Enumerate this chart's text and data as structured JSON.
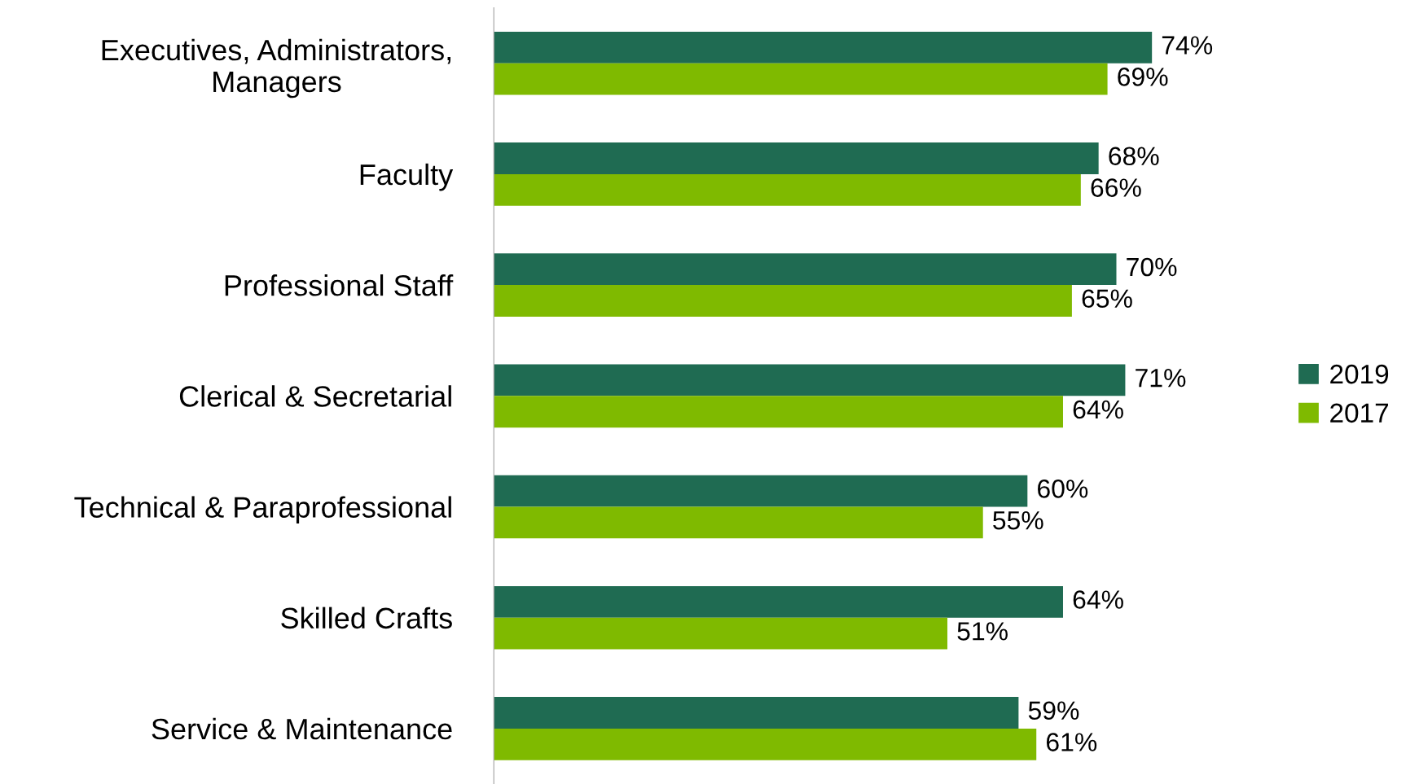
{
  "chart_data": {
    "type": "bar",
    "orientation": "horizontal",
    "categories": [
      "Executives, Administrators,\nManagers",
      "Faculty",
      "Professional Staff",
      "Clerical & Secretarial",
      "Technical & Paraprofessional",
      "Skilled Crafts",
      "Service & Maintenance"
    ],
    "series": [
      {
        "name": "2019",
        "color": "#1f6b52",
        "values": [
          74,
          68,
          70,
          71,
          60,
          64,
          59
        ],
        "value_labels": [
          "74%",
          "68%",
          "70%",
          "71%",
          "60%",
          "64%",
          "59%"
        ]
      },
      {
        "name": "2017",
        "color": "#7fba00",
        "values": [
          69,
          66,
          65,
          64,
          55,
          51,
          61
        ],
        "value_labels": [
          "69%",
          "66%",
          "65%",
          "64%",
          "55%",
          "51%",
          "61%"
        ]
      }
    ],
    "legend": "right",
    "grid": false,
    "tick_labels": "y"
  }
}
